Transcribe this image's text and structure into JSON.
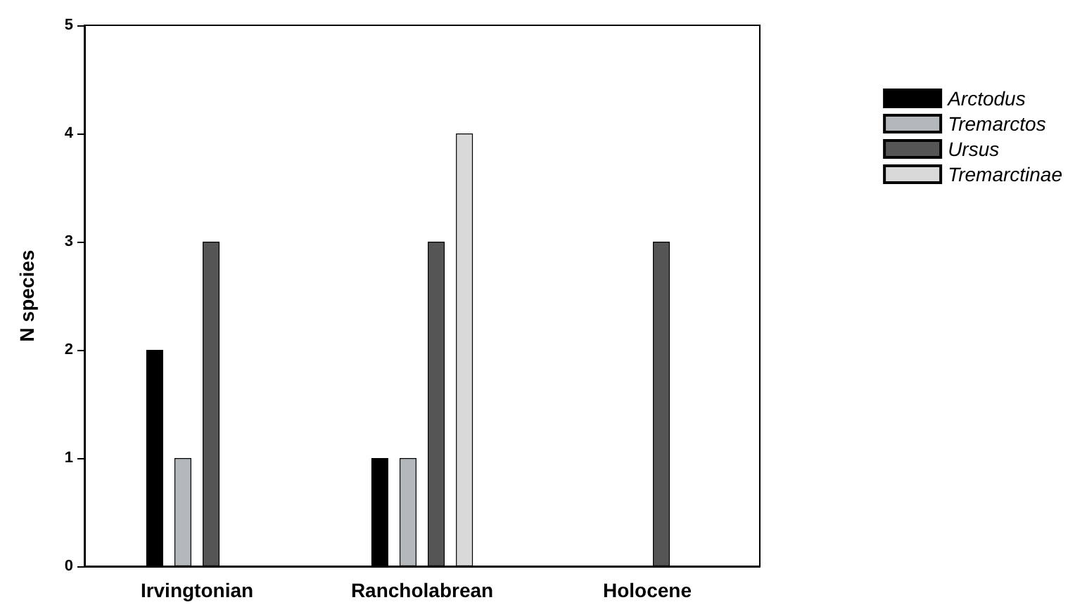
{
  "chart_data": {
    "type": "bar",
    "ylabel": "N species",
    "categories": [
      "Irvingtonian",
      "Rancholabrean",
      "Holocene"
    ],
    "series": [
      {
        "name": "Arctodus",
        "color": "#000000",
        "values": [
          2,
          1,
          null
        ]
      },
      {
        "name": "Tremarctos",
        "color": "#b4b8bb",
        "values": [
          1,
          1,
          null
        ]
      },
      {
        "name": "Ursus",
        "color": "#555555",
        "values": [
          3,
          3,
          3
        ]
      },
      {
        "name": "Tremarctinae",
        "color": "#d9d9d9",
        "values": [
          null,
          4,
          null
        ]
      }
    ],
    "ylim": [
      0,
      5
    ],
    "yticks": [
      0,
      1,
      2,
      3,
      4,
      5
    ],
    "grid": false,
    "legend": "right"
  }
}
